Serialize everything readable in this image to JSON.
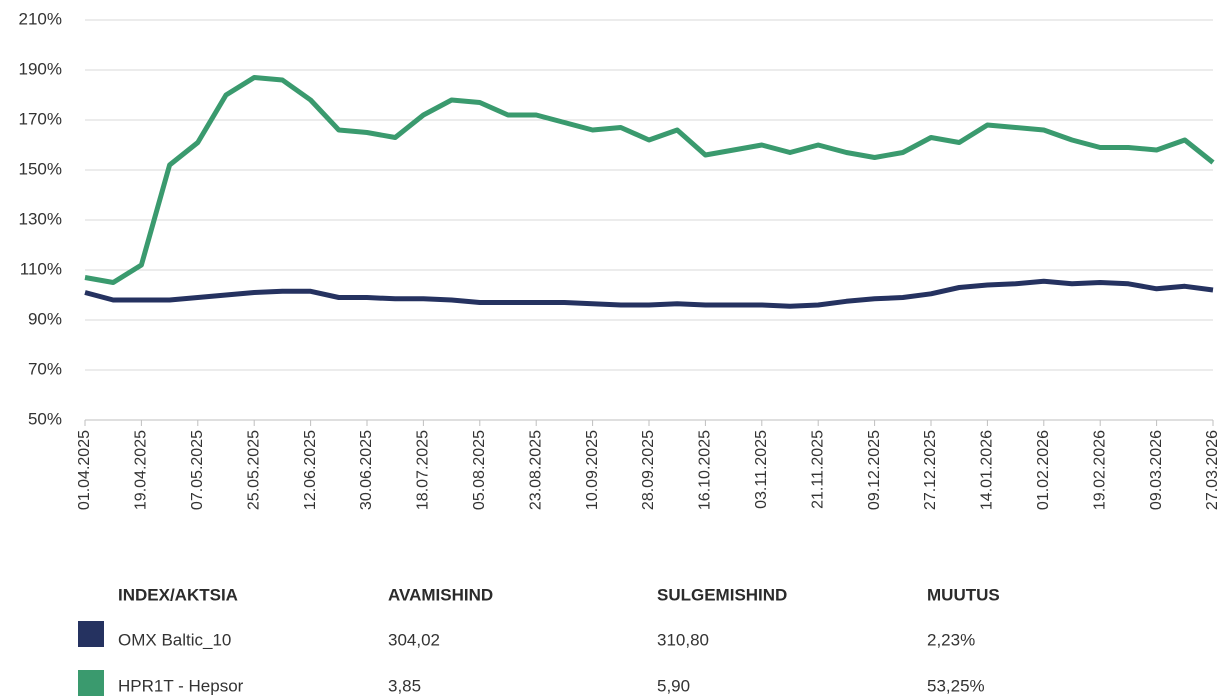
{
  "chart_data": {
    "type": "line",
    "x": [
      "01.04.2025",
      "10.04.2025",
      "19.04.2025",
      "28.04.2025",
      "07.05.2025",
      "16.05.2025",
      "25.05.2025",
      "03.06.2025",
      "12.06.2025",
      "21.06.2025",
      "30.06.2025",
      "09.07.2025",
      "18.07.2025",
      "27.07.2025",
      "05.08.2025",
      "14.08.2025",
      "23.08.2025",
      "01.09.2025",
      "10.09.2025",
      "19.09.2025",
      "28.09.2025",
      "07.10.2025",
      "16.10.2025",
      "25.10.2025",
      "03.11.2025",
      "12.11.2025",
      "21.11.2025",
      "30.11.2025",
      "09.12.2025",
      "18.12.2025",
      "27.12.2025",
      "05.01.2026",
      "14.01.2026",
      "23.01.2026",
      "01.02.2026",
      "10.02.2026",
      "19.02.2026",
      "28.02.2026",
      "09.03.2026",
      "18.03.2026",
      "27.03.2026"
    ],
    "series": [
      {
        "name": "OMX Baltic_10",
        "color": "#253260",
        "values": [
          101,
          98,
          98,
          98,
          99,
          100,
          101,
          101.5,
          101.5,
          99,
          99,
          98.5,
          98.5,
          98,
          97,
          97,
          97,
          97,
          96.5,
          96,
          96,
          96.5,
          96,
          96,
          96,
          95.5,
          96,
          97.5,
          98.5,
          99,
          100.5,
          103,
          104,
          104.5,
          105.5,
          104.5,
          105,
          104.5,
          102.5,
          103.5,
          102
        ]
      },
      {
        "name": "HPR1T - Hepsor",
        "color": "#3a9a6e",
        "values": [
          107,
          105,
          112,
          152,
          161,
          180,
          187,
          186,
          178,
          166,
          165,
          163,
          172,
          178,
          177,
          172,
          172,
          169,
          166,
          167,
          162,
          166,
          156,
          158,
          160,
          157,
          160,
          157,
          155,
          157,
          163,
          161,
          168,
          167,
          166,
          162,
          159,
          159,
          158,
          162,
          153
        ]
      }
    ],
    "xlim": [
      "01.04.2025",
      "27.03.2026"
    ],
    "xticks": [
      "01.04.2025",
      "19.04.2025",
      "07.05.2025",
      "25.05.2025",
      "12.06.2025",
      "30.06.2025",
      "18.07.2025",
      "05.08.2025",
      "23.08.2025",
      "10.09.2025",
      "28.09.2025",
      "16.10.2025",
      "03.11.2025",
      "21.11.2025",
      "09.12.2025",
      "27.12.2025",
      "14.01.2026",
      "01.02.2026",
      "19.02.2026",
      "09.03.2026",
      "27.03.2026"
    ],
    "ylim": [
      50,
      210
    ],
    "yticks": [
      {
        "value": 50,
        "label": "50%"
      },
      {
        "value": 70,
        "label": "70%"
      },
      {
        "value": 90,
        "label": "90%"
      },
      {
        "value": 110,
        "label": "110%"
      },
      {
        "value": 130,
        "label": "130%"
      },
      {
        "value": 150,
        "label": "150%"
      },
      {
        "value": 170,
        "label": "170%"
      },
      {
        "value": 190,
        "label": "190%"
      },
      {
        "value": 210,
        "label": "210%"
      }
    ],
    "grid": true
  },
  "table": {
    "header": [
      "INDEX/AKTSIA",
      "AVAMISHIND",
      "SULGEMISHIND",
      "MUUTUS"
    ],
    "rows": [
      [
        "OMX Baltic_10",
        "304,02",
        "310,80",
        "2,23%"
      ],
      [
        "HPR1T - Hepsor",
        "3,85",
        "5,90",
        "53,25%"
      ]
    ]
  }
}
